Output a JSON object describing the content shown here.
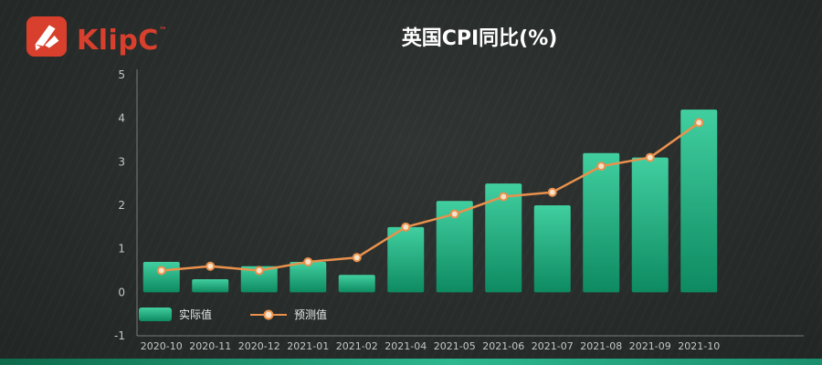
{
  "header": {
    "logo_text": "KlipC",
    "logo_tm": "™",
    "title": "英国CPI同比(%)"
  },
  "chart_data": {
    "type": "bar",
    "title": "英国CPI同比(%)",
    "categories": [
      "2020-10",
      "2020-11",
      "2020-12",
      "2021-01",
      "2021-02",
      "2021-04",
      "2021-05",
      "2021-06",
      "2021-07",
      "2021-08",
      "2021-09",
      "2021-10"
    ],
    "series": [
      {
        "name": "实际值",
        "type": "bar",
        "values": [
          0.7,
          0.3,
          0.6,
          0.7,
          0.4,
          1.5,
          2.1,
          2.5,
          2.0,
          3.2,
          3.1,
          4.2
        ]
      },
      {
        "name": "预测值",
        "type": "line",
        "values": [
          0.5,
          0.6,
          0.5,
          0.7,
          0.8,
          1.5,
          1.8,
          2.2,
          2.3,
          2.9,
          3.1,
          3.9
        ]
      }
    ],
    "ylim": [
      -1,
      5
    ],
    "yticks": [
      5,
      4,
      3,
      2,
      1,
      0,
      -1
    ],
    "grid": false,
    "legend_position": "bottom-left",
    "colors": {
      "background": "#2b302e",
      "bar_top": "#41cfa0",
      "bar_bottom": "#0e8a61",
      "line": "#e9914d",
      "marker_fill": "#f6e2c6",
      "axis_line": "#9aa19e",
      "axis_text": "#c3c9c6",
      "brand": "#d8402d",
      "title_text": "#ffffff",
      "strip_a": "#0d6a4b",
      "strip_b": "#2db890",
      "strip_c": "#1b8f6d"
    }
  },
  "legend": {
    "actual_label": "实际值",
    "forecast_label": "预测值"
  }
}
